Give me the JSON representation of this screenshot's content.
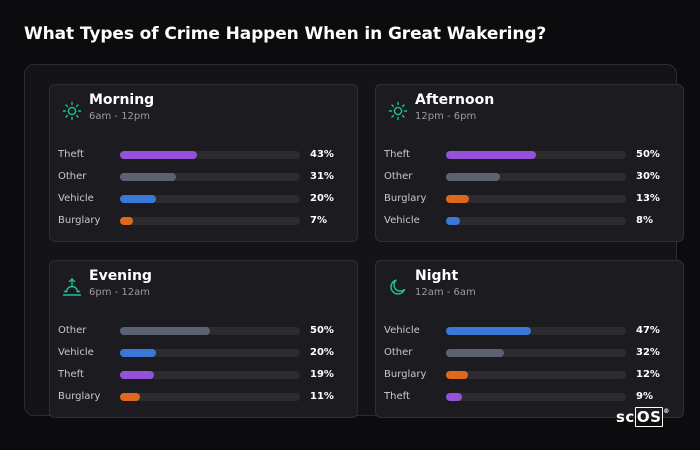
{
  "title": "What Types of Crime Happen When in Great Wakering?",
  "logo": {
    "pre": "sc",
    "boxed": "OS",
    "mark": "®"
  },
  "colors": {
    "Theft": "#9352d8",
    "Other": "#5b6372",
    "Vehicle": "#3a78d8",
    "Burglary": "#e0681e"
  },
  "chart_data": [
    {
      "type": "bar",
      "period": "Morning",
      "range": "6am - 12pm",
      "icon": "sun-icon",
      "categories": [
        "Theft",
        "Other",
        "Vehicle",
        "Burglary"
      ],
      "values": [
        43,
        31,
        20,
        7
      ],
      "labels": [
        "43%",
        "31%",
        "20%",
        "7%"
      ]
    },
    {
      "type": "bar",
      "period": "Afternoon",
      "range": "12pm - 6pm",
      "icon": "sun-icon",
      "categories": [
        "Theft",
        "Other",
        "Burglary",
        "Vehicle"
      ],
      "values": [
        50,
        30,
        13,
        8
      ],
      "labels": [
        "50%",
        "30%",
        "13%",
        "8%"
      ]
    },
    {
      "type": "bar",
      "period": "Evening",
      "range": "6pm - 12am",
      "icon": "sunset-icon",
      "categories": [
        "Other",
        "Vehicle",
        "Theft",
        "Burglary"
      ],
      "values": [
        50,
        20,
        19,
        11
      ],
      "labels": [
        "50%",
        "20%",
        "19%",
        "11%"
      ]
    },
    {
      "type": "bar",
      "period": "Night",
      "range": "12am - 6am",
      "icon": "moon-icon",
      "categories": [
        "Vehicle",
        "Other",
        "Burglary",
        "Theft"
      ],
      "values": [
        47,
        32,
        12,
        9
      ],
      "labels": [
        "47%",
        "32%",
        "12%",
        "9%"
      ]
    }
  ]
}
